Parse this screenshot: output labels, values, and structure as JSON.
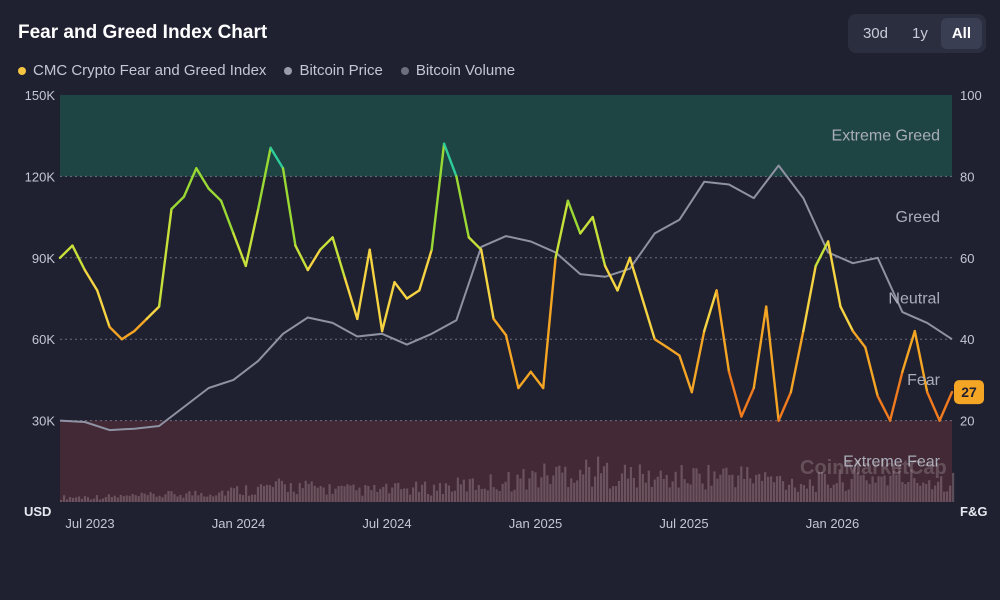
{
  "header": {
    "title": "Fear and Greed Index Chart",
    "ranges": [
      "30d",
      "1y",
      "All"
    ],
    "active_range": "All"
  },
  "legend": [
    {
      "label": "CMC Crypto Fear and Greed Index",
      "color": "#f5c542"
    },
    {
      "label": "Bitcoin Price",
      "color": "#9a9cab"
    },
    {
      "label": "Bitcoin Volume",
      "color": "#6d6f7e"
    }
  ],
  "watermark": "CoinMarketCap",
  "current_badge": {
    "value": "27",
    "color": "#f5a524"
  },
  "chart_data": {
    "type": "line",
    "title": "Fear and Greed Index Chart",
    "left_axis": {
      "unit": "USD",
      "ticks": [
        "150K",
        "120K",
        "90K",
        "60K",
        "30K"
      ],
      "tick_values": [
        150000,
        120000,
        90000,
        60000,
        30000
      ],
      "range": [
        0,
        150000
      ]
    },
    "right_axis": {
      "unit": "F&G",
      "ticks": [
        "100",
        "80",
        "60",
        "40",
        "20"
      ],
      "tick_values": [
        100,
        80,
        60,
        40,
        20
      ],
      "range": [
        0,
        100
      ]
    },
    "x_ticks": [
      "Jul 2023",
      "Jan 2024",
      "Jul 2024",
      "Jan 2025",
      "Jul 2025",
      "Jan 2026"
    ],
    "zones": [
      {
        "label": "Extreme Greed",
        "from": 80,
        "to": 100,
        "color": "#1f4a46"
      },
      {
        "label": "Greed",
        "from": 60,
        "to": 80
      },
      {
        "label": "Neutral",
        "from": 40,
        "to": 60
      },
      {
        "label": "Fear",
        "from": 20,
        "to": 40
      },
      {
        "label": "Extreme Fear",
        "from": 0,
        "to": 20,
        "color": "#4a2a36"
      }
    ],
    "grid": true,
    "legend_position": "top-left",
    "x_index_span": [
      0,
      36
    ],
    "series": [
      {
        "name": "CMC Crypto Fear and Greed Index",
        "axis": "right",
        "x": [
          0,
          0.5,
          1,
          1.5,
          2,
          2.5,
          3,
          3.5,
          4,
          4.5,
          5,
          5.5,
          6,
          6.5,
          7,
          7.5,
          8,
          8.5,
          9,
          9.5,
          10,
          10.5,
          11,
          11.5,
          12,
          12.5,
          13,
          13.5,
          14,
          14.5,
          15,
          15.5,
          16,
          16.5,
          17,
          17.5,
          18,
          18.5,
          19,
          19.5,
          20,
          20.5,
          21,
          21.5,
          22,
          22.5,
          23,
          23.5,
          24,
          24.5,
          25,
          25.5,
          26,
          26.5,
          27,
          27.5,
          28,
          28.5,
          29,
          29.5,
          30,
          30.5,
          31,
          31.5,
          32,
          32.5,
          33,
          33.5,
          34,
          34.5,
          35,
          35.5,
          36
        ],
        "values": [
          60,
          63,
          57,
          52,
          43,
          40,
          42,
          45,
          48,
          72,
          75,
          82,
          77,
          74,
          66,
          58,
          72,
          87,
          82,
          63,
          57,
          62,
          65,
          55,
          45,
          62,
          42,
          54,
          50,
          52,
          62,
          88,
          80,
          65,
          62,
          45,
          41,
          28,
          32,
          28,
          60,
          74,
          66,
          70,
          58,
          52,
          60,
          50,
          40,
          38,
          36,
          27,
          42,
          52,
          32,
          21,
          28,
          48,
          20,
          27,
          42,
          58,
          64,
          48,
          42,
          38,
          26,
          20,
          32,
          42,
          27,
          20,
          27
        ]
      },
      {
        "name": "Bitcoin Price",
        "axis": "left",
        "x": [
          0,
          1,
          2,
          3,
          4,
          5,
          6,
          7,
          8,
          9,
          10,
          11,
          12,
          13,
          14,
          15,
          16,
          17,
          18,
          19,
          20,
          21,
          22,
          23,
          24,
          25,
          26,
          27,
          28,
          29,
          30,
          31,
          32,
          33,
          34,
          35,
          36
        ],
        "values": [
          30000,
          29500,
          26500,
          27000,
          28000,
          35000,
          42000,
          45000,
          52000,
          62000,
          68000,
          66000,
          61000,
          62000,
          58000,
          62000,
          67000,
          94000,
          98000,
          96000,
          92000,
          84000,
          83000,
          86000,
          99000,
          104000,
          118000,
          117000,
          112000,
          124000,
          112000,
          92000,
          88000,
          90000,
          70000,
          66000,
          60000
        ]
      },
      {
        "name": "Bitcoin Volume",
        "axis": "left",
        "x": [
          0,
          3,
          6,
          9,
          12,
          15,
          18,
          21,
          24,
          27,
          30,
          33,
          36
        ],
        "values": [
          2000,
          2500,
          4000,
          7000,
          5000,
          6000,
          9000,
          14000,
          10000,
          12000,
          8000,
          11000,
          9000
        ]
      }
    ]
  }
}
